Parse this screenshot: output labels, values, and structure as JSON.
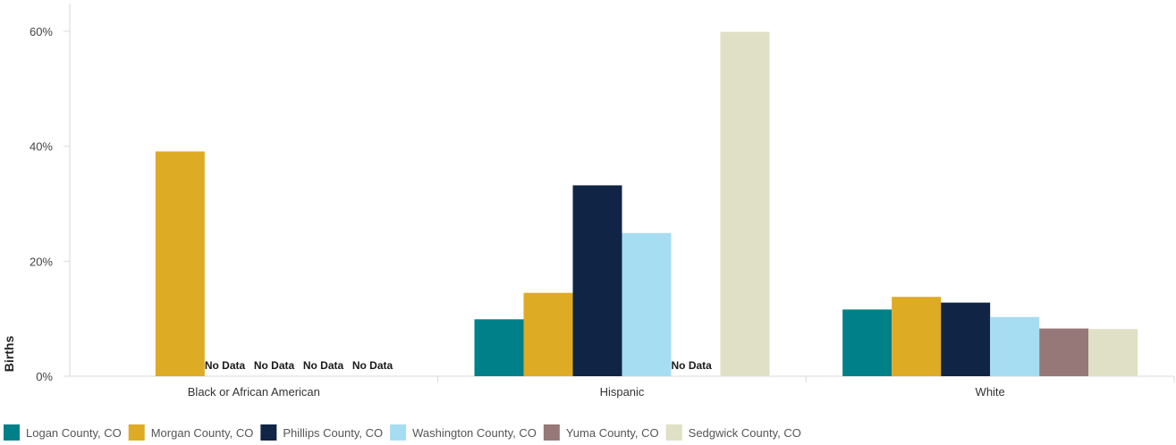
{
  "chart_data": {
    "type": "bar",
    "title": "",
    "xlabel": "",
    "ylabel": "Births",
    "ylim": [
      0,
      0.6
    ],
    "yticks": [
      {
        "value": 0,
        "label": "0%"
      },
      {
        "value": 0.2,
        "label": "20%"
      },
      {
        "value": 0.4,
        "label": "40%"
      },
      {
        "value": 0.6,
        "label": "60%"
      }
    ],
    "categories": [
      "Black or African American",
      "Hispanic",
      "White"
    ],
    "no_data_label": "No Data",
    "legend_position": "bottom-left",
    "series": [
      {
        "name": "Logan County, CO",
        "color": "#008089",
        "values": [
          0,
          0.099,
          0.116
        ]
      },
      {
        "name": "Morgan County, CO",
        "color": "#DEAB24",
        "values": [
          0.391,
          0.145,
          0.138
        ]
      },
      {
        "name": "Phillips County, CO",
        "color": "#102446",
        "values": [
          null,
          0.332,
          0.128
        ]
      },
      {
        "name": "Washington County, CO",
        "color": "#A7DDF3",
        "values": [
          null,
          0.249,
          0.103
        ]
      },
      {
        "name": "Yuma County, CO",
        "color": "#977878",
        "values": [
          null,
          null,
          0.083
        ]
      },
      {
        "name": "Sedgwick County, CO",
        "color": "#E0E0C7",
        "values": [
          null,
          0.599,
          0.082
        ]
      }
    ]
  }
}
